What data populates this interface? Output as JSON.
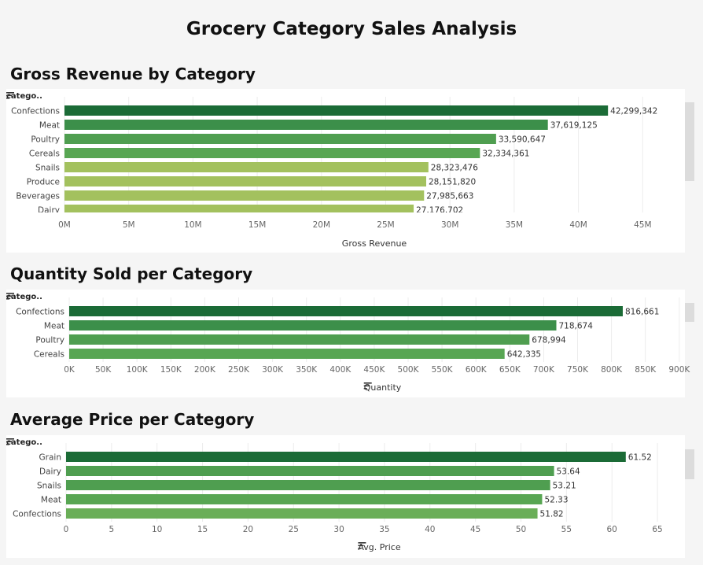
{
  "page": {
    "title": "Grocery Category Sales Analysis"
  },
  "colors": {
    "dark": "#1b6b36",
    "mid": "#3c8f4a",
    "light": "#58a653",
    "lime": "#a3c15e",
    "grid": "#ececec",
    "axis_text": "#666666"
  },
  "chart_data": [
    {
      "type": "bar",
      "orientation": "horizontal",
      "title": "Gross Revenue by Category",
      "field_label": "catego..",
      "xlabel": "Gross Revenue",
      "xlim": [
        0,
        48000000
      ],
      "ticks": [
        {
          "v": 0,
          "label": "0M"
        },
        {
          "v": 5000000,
          "label": "5M"
        },
        {
          "v": 10000000,
          "label": "10M"
        },
        {
          "v": 15000000,
          "label": "15M"
        },
        {
          "v": 20000000,
          "label": "20M"
        },
        {
          "v": 25000000,
          "label": "25M"
        },
        {
          "v": 30000000,
          "label": "30M"
        },
        {
          "v": 35000000,
          "label": "35M"
        },
        {
          "v": 40000000,
          "label": "40M"
        },
        {
          "v": 45000000,
          "label": "45M"
        }
      ],
      "categories": [
        "Confections",
        "Meat",
        "Poultry",
        "Cereals",
        "Snails",
        "Produce",
        "Beverages",
        "Dairy"
      ],
      "values": [
        42299342,
        37619125,
        33590647,
        32334361,
        28323476,
        28151820,
        27985663,
        27176702
      ],
      "value_labels": [
        "42,299,342",
        "37,619,125",
        "33,590,647",
        "32,334,361",
        "28,323,476",
        "28,151,820",
        "27,985,663",
        "27,176,702"
      ],
      "bar_colors": [
        "#1b6b36",
        "#3c8f4a",
        "#4f9e50",
        "#58a653",
        "#a3c15e",
        "#a3c15e",
        "#a3c15e",
        "#a3c15e"
      ]
    },
    {
      "type": "bar",
      "orientation": "horizontal",
      "title": "Quantity Sold per Category",
      "field_label": "catego..",
      "xlabel": "Quantity",
      "xlim": [
        0,
        905000
      ],
      "ticks": [
        {
          "v": 0,
          "label": "0K"
        },
        {
          "v": 50000,
          "label": "50K"
        },
        {
          "v": 100000,
          "label": "100K"
        },
        {
          "v": 150000,
          "label": "150K"
        },
        {
          "v": 200000,
          "label": "200K"
        },
        {
          "v": 250000,
          "label": "250K"
        },
        {
          "v": 300000,
          "label": "300K"
        },
        {
          "v": 350000,
          "label": "350K"
        },
        {
          "v": 400000,
          "label": "400K"
        },
        {
          "v": 450000,
          "label": "450K"
        },
        {
          "v": 500000,
          "label": "500K"
        },
        {
          "v": 550000,
          "label": "550K"
        },
        {
          "v": 600000,
          "label": "600K"
        },
        {
          "v": 650000,
          "label": "650K"
        },
        {
          "v": 700000,
          "label": "700K"
        },
        {
          "v": 750000,
          "label": "750K"
        },
        {
          "v": 800000,
          "label": "800K"
        },
        {
          "v": 850000,
          "label": "850K"
        },
        {
          "v": 900000,
          "label": "900K"
        }
      ],
      "categories": [
        "Confections",
        "Meat",
        "Poultry",
        "Cereals"
      ],
      "values": [
        816661,
        718674,
        678994,
        642335
      ],
      "value_labels": [
        "816,661",
        "718,674",
        "678,994",
        "642,335"
      ],
      "bar_colors": [
        "#1b6b36",
        "#3c8f4a",
        "#4f9e50",
        "#58a653"
      ]
    },
    {
      "type": "bar",
      "orientation": "horizontal",
      "title": "Average Price per Category",
      "field_label": "catego..",
      "xlabel": "Avg. Price",
      "xlim": [
        0,
        66
      ],
      "ticks": [
        {
          "v": 0,
          "label": "0"
        },
        {
          "v": 5,
          "label": "5"
        },
        {
          "v": 10,
          "label": "10"
        },
        {
          "v": 15,
          "label": "15"
        },
        {
          "v": 20,
          "label": "20"
        },
        {
          "v": 25,
          "label": "25"
        },
        {
          "v": 30,
          "label": "30"
        },
        {
          "v": 35,
          "label": "35"
        },
        {
          "v": 40,
          "label": "40"
        },
        {
          "v": 45,
          "label": "45"
        },
        {
          "v": 50,
          "label": "50"
        },
        {
          "v": 55,
          "label": "55"
        },
        {
          "v": 60,
          "label": "60"
        },
        {
          "v": 65,
          "label": "65"
        }
      ],
      "categories": [
        "Grain",
        "Dairy",
        "Snails",
        "Meat",
        "Confections"
      ],
      "values": [
        61.52,
        53.64,
        53.21,
        52.33,
        51.82
      ],
      "value_labels": [
        "61.52",
        "53.64",
        "53.21",
        "52.33",
        "51.82"
      ],
      "bar_colors": [
        "#1b6b36",
        "#4f9e50",
        "#4f9e50",
        "#58a653",
        "#6aae58"
      ]
    }
  ]
}
